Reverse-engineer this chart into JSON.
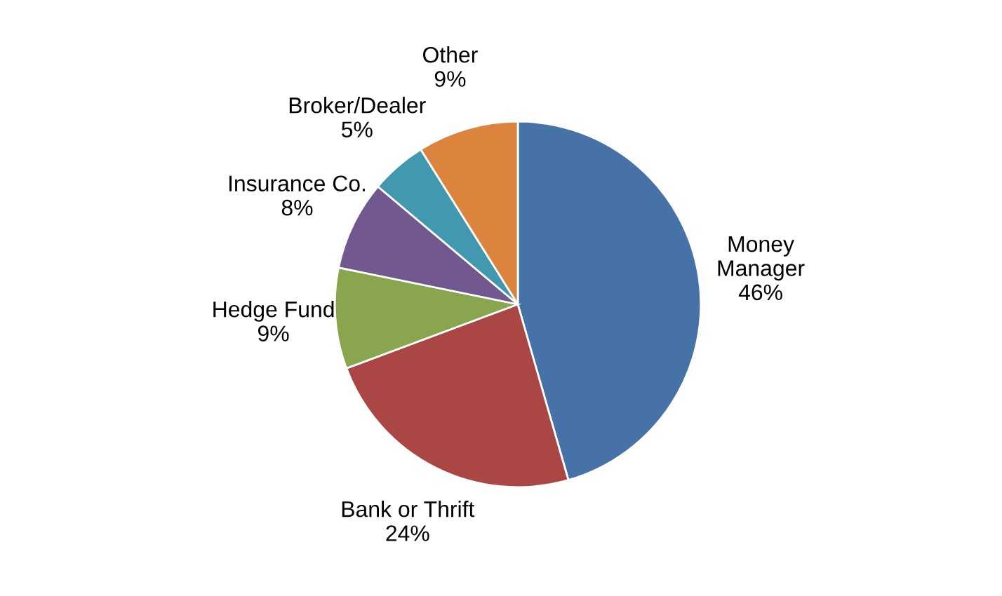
{
  "chart_data": {
    "type": "pie",
    "categories": [
      "Money\nManager",
      "Bank or Thrift",
      "Hedge Fund",
      "Insurance Co.",
      "Broker/Dealer",
      "Other"
    ],
    "values": [
      46,
      24,
      9,
      8,
      5,
      9
    ],
    "value_labels": [
      "46%",
      "24%",
      "9%",
      "8%",
      "5%",
      "9%"
    ],
    "colors": [
      "#4672a8",
      "#aa4643",
      "#89a54e",
      "#71588f",
      "#4198af",
      "#db843d"
    ],
    "legend": false
  }
}
